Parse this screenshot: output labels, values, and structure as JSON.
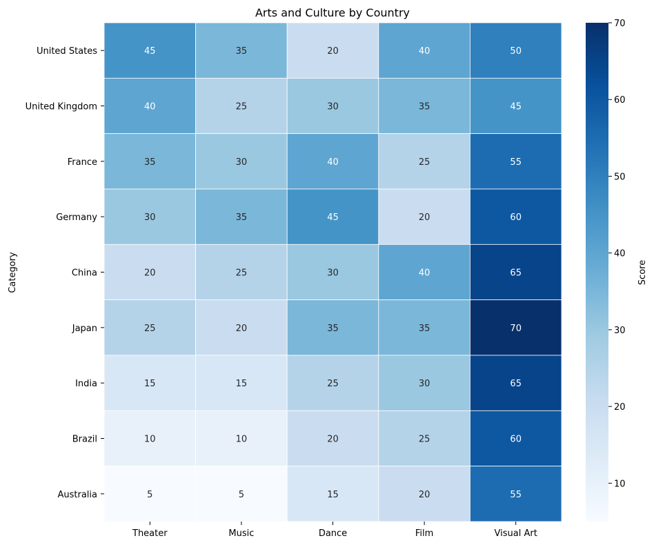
{
  "chart_data": {
    "type": "heatmap",
    "title": "Arts and Culture by Country",
    "ylabel": "Category",
    "xlabel": "",
    "x_categories": [
      "Theater",
      "Music",
      "Dance",
      "Film",
      "Visual Art"
    ],
    "y_categories": [
      "United States",
      "United Kingdom",
      "France",
      "Germany",
      "China",
      "Japan",
      "India",
      "Brazil",
      "Australia"
    ],
    "values": [
      [
        45,
        35,
        20,
        40,
        50
      ],
      [
        40,
        25,
        30,
        35,
        45
      ],
      [
        35,
        30,
        40,
        25,
        55
      ],
      [
        30,
        35,
        45,
        20,
        60
      ],
      [
        20,
        25,
        30,
        40,
        65
      ],
      [
        25,
        20,
        35,
        35,
        70
      ],
      [
        15,
        15,
        25,
        30,
        65
      ],
      [
        10,
        10,
        20,
        25,
        60
      ],
      [
        5,
        5,
        15,
        20,
        55
      ]
    ],
    "annotations": true,
    "colormap": "Blues",
    "vmin": 5,
    "vmax": 70,
    "colorbar": {
      "label": "Score",
      "ticks": [
        10,
        20,
        30,
        40,
        50,
        60,
        70
      ]
    }
  }
}
